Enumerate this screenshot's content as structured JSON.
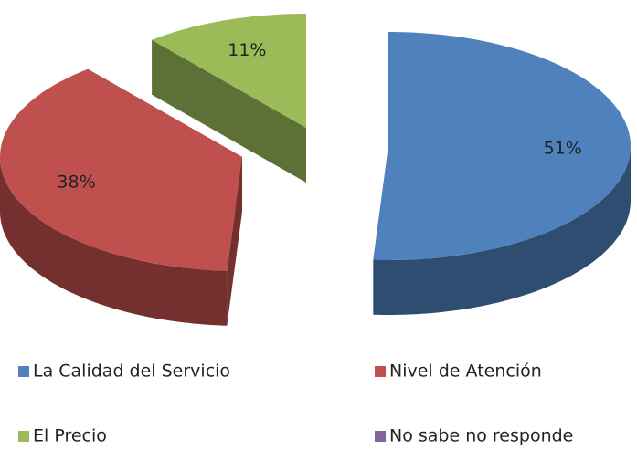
{
  "chart_data": {
    "type": "pie",
    "categories": [
      "La Calidad del Servicio",
      "Nivel de Atención",
      "El Precio",
      "No sabe no responde"
    ],
    "values": [
      51,
      38,
      11,
      0
    ],
    "value_labels": [
      "51%",
      "38%",
      "11%",
      null
    ],
    "colors": [
      "#4f81bd",
      "#c0504d",
      "#9bbb59",
      "#8064a2"
    ],
    "legend": "bottom"
  }
}
